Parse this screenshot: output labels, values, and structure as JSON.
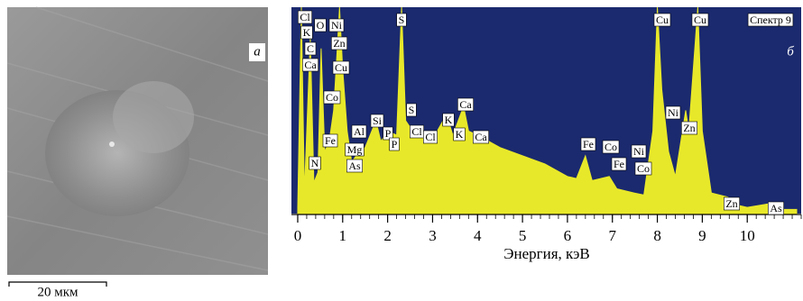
{
  "figure": {
    "panel_a": {
      "label": "а",
      "scale_bar": "20 мкм"
    },
    "panel_b": {
      "label": "б",
      "spectrum_name": "Спектр 9"
    }
  },
  "chart_data": {
    "type": "area",
    "color": "#e8e82a",
    "background": "#1b2a6e",
    "xlabel": "Энергия, кэВ",
    "x": [
      0,
      0.08,
      0.15,
      0.28,
      0.36,
      0.45,
      0.52,
      0.6,
      0.7,
      0.8,
      0.88,
      0.93,
      1.0,
      1.1,
      1.2,
      1.3,
      1.5,
      1.74,
      1.85,
      2.0,
      2.2,
      2.31,
      2.4,
      2.62,
      2.8,
      3.0,
      3.31,
      3.45,
      3.69,
      3.8,
      4.0,
      4.5,
      5.0,
      5.5,
      6.0,
      6.2,
      6.4,
      6.55,
      6.93,
      7.1,
      7.48,
      7.7,
      7.9,
      8.0,
      8.1,
      8.25,
      8.4,
      8.63,
      8.7,
      8.9,
      9.0,
      9.2,
      9.57,
      9.8,
      10.0,
      10.54,
      10.8,
      11.1
    ],
    "values": [
      3,
      100,
      10,
      85,
      15,
      20,
      80,
      30,
      35,
      50,
      80,
      100,
      70,
      40,
      25,
      28,
      32,
      45,
      35,
      40,
      38,
      100,
      45,
      38,
      40,
      36,
      48,
      38,
      52,
      40,
      38,
      32,
      28,
      24,
      18,
      17,
      28,
      16,
      18,
      12,
      10,
      9,
      40,
      100,
      60,
      30,
      18,
      50,
      40,
      100,
      40,
      10,
      8,
      4,
      3,
      5,
      2,
      2
    ],
    "xlim": [
      -0.14,
      11.2
    ],
    "ylim": [
      0,
      100
    ],
    "xticks": [
      0,
      1,
      2,
      3,
      4,
      5,
      6,
      7,
      8,
      9,
      10
    ],
    "peak_labels": [
      "Cl",
      "K",
      "C",
      "Ca",
      "O",
      "Ni",
      "Zn",
      "Cu",
      "Co",
      "Fe",
      "N",
      "Mg",
      "As",
      "Al",
      "Si",
      "P",
      "P",
      "S",
      "S",
      "Cl",
      "Cl",
      "K",
      "Ca",
      "K",
      "Ca",
      "Fe",
      "Co",
      "Fe",
      "Ni",
      "Co",
      "Cu",
      "Cu",
      "Ni",
      "Zn",
      "Zn",
      "As"
    ]
  }
}
